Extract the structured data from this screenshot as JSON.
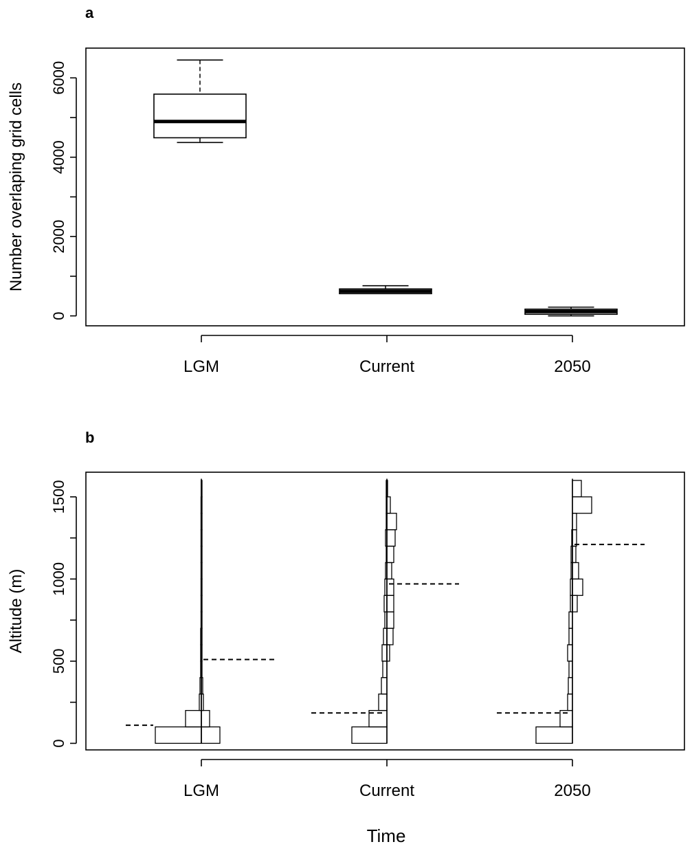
{
  "chart_data": [
    {
      "panel": "a",
      "type": "boxplot",
      "ylabel": "Number overlaping grid cells",
      "xlabel": "",
      "categories": [
        "LGM",
        "Current",
        "2050"
      ],
      "yticks": [
        0,
        2000,
        4000,
        6000
      ],
      "ylim": [
        -250,
        6750
      ],
      "boxes": [
        {
          "category": "LGM",
          "whisker_low": 4370,
          "q1": 4490,
          "median": 4900,
          "q3": 5590,
          "whisker_high": 6450
        },
        {
          "category": "Current",
          "whisker_low": 560,
          "q1": 560,
          "median": 620,
          "q3": 680,
          "whisker_high": 760
        },
        {
          "category": "2050",
          "whisker_low": 0,
          "q1": 40,
          "median": 110,
          "q3": 170,
          "whisker_high": 220
        }
      ]
    },
    {
      "panel": "b",
      "type": "histogram",
      "ylabel": "Altitude (m)",
      "xlabel": "Time",
      "categories": [
        "LGM",
        "Current",
        "2050"
      ],
      "yticks": [
        0,
        500,
        1000,
        1500
      ],
      "ylim": [
        -40,
        1650
      ],
      "bin_width": 100,
      "bin_bottoms": [
        0,
        100,
        200,
        300,
        400,
        500,
        600,
        700,
        800,
        900,
        1000,
        1100,
        1200,
        1300,
        1400,
        1500
      ],
      "series": [
        {
          "name": "LGM",
          "counts_left": [
            67,
            23,
            3,
            2,
            1,
            1,
            1,
            0.5,
            0.5,
            0.5,
            0.5,
            0.5,
            0.5,
            0.5,
            0.5,
            0.3
          ],
          "counts_right": [
            27,
            12,
            3,
            2,
            1,
            1,
            1,
            1,
            1,
            1,
            1,
            1,
            1,
            1,
            1,
            1
          ],
          "top": 1610,
          "dashed_lines": [
            {
              "y": 110,
              "from": -110,
              "to": -70
            },
            {
              "y": 510,
              "from": 3,
              "to": 107
            }
          ]
        },
        {
          "name": "Current",
          "counts_left": [
            51,
            26,
            12,
            8,
            6,
            7,
            5,
            3,
            4,
            3,
            2,
            1,
            2,
            1,
            1,
            1
          ],
          "counts_right": [
            0,
            0,
            0,
            0,
            0,
            4,
            9,
            10,
            10,
            10,
            7,
            10,
            12,
            14,
            5,
            1
          ],
          "top": 1610,
          "dashed_lines": [
            {
              "y": 185,
              "from": -110,
              "to": -5
            },
            {
              "y": 970,
              "from": 3,
              "to": 105
            }
          ]
        },
        {
          "name": "2050",
          "counts_left": [
            53,
            18,
            7,
            6,
            5,
            7,
            5,
            5,
            3,
            3,
            2,
            2,
            1,
            0,
            0,
            0
          ],
          "counts_right": [
            0,
            0,
            0,
            0,
            0,
            0,
            0,
            0,
            7,
            15,
            9,
            5,
            6,
            6,
            28,
            13
          ],
          "top": 1610,
          "dashed_lines": [
            {
              "y": 185,
              "from": -110,
              "to": -3
            },
            {
              "y": 1210,
              "from": 3,
              "to": 105
            }
          ]
        }
      ]
    }
  ]
}
